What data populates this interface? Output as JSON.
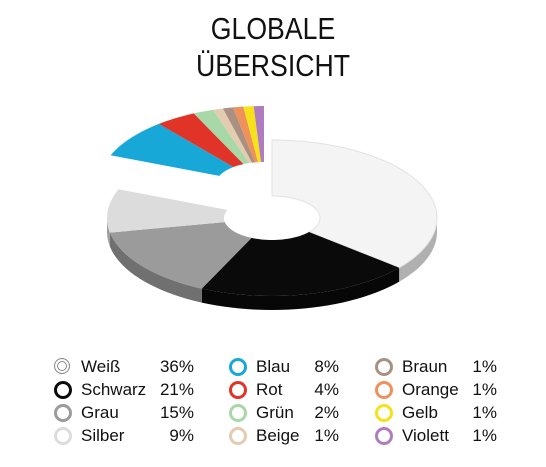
{
  "header": {
    "title_line1": "GLOBALE",
    "title_line2": "ÜBERSICHT"
  },
  "chart_data": {
    "type": "pie",
    "title": "GLOBALE ÜBERSICHT",
    "donut": true,
    "legend_placement": "bottom",
    "categories": [
      "Weiß",
      "Schwarz",
      "Grau",
      "Silber",
      "Blau",
      "Rot",
      "Grün",
      "Beige",
      "Braun",
      "Orange",
      "Gelb",
      "Violett"
    ],
    "values": [
      36,
      21,
      15,
      9,
      8,
      4,
      2,
      1,
      1,
      1,
      1,
      1
    ],
    "labels": [
      "36%",
      "21%",
      "15%",
      "9%",
      "8%",
      "4%",
      "2%",
      "1%",
      "1%",
      "1%",
      "1%",
      "1%"
    ],
    "colors": [
      "#f4f4f4",
      "#0a0a0a",
      "#9b9b9b",
      "#dcdcdc",
      "#18a8d8",
      "#e03428",
      "#a8d8a8",
      "#e3ccb0",
      "#a99080",
      "#f0905a",
      "#f5e21a",
      "#b07cc0"
    ],
    "exploded": [
      "Blau",
      "Rot",
      "Grün",
      "Beige",
      "Braun",
      "Orange",
      "Gelb",
      "Violett"
    ]
  }
}
